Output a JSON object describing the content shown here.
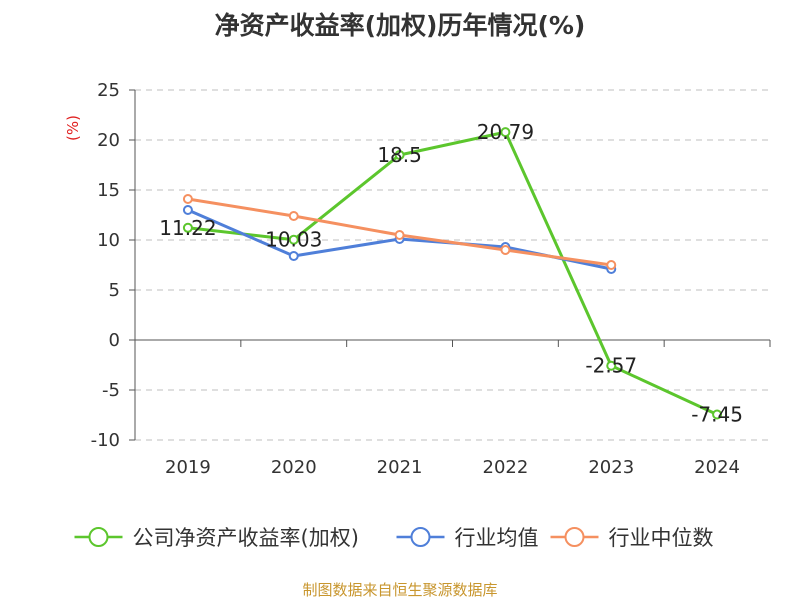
{
  "chart_data": {
    "type": "line",
    "title": "净资产收益率(加权)历年情况(%)",
    "ylabel": "(%)",
    "categories": [
      "2019",
      "2020",
      "2021",
      "2022",
      "2023",
      "2024"
    ],
    "ylim": [
      -10,
      25
    ],
    "yticks": [
      25,
      20,
      15,
      10,
      5,
      0,
      -5,
      -10
    ],
    "grid": true,
    "legend_position": "bottom",
    "series": [
      {
        "name": "公司净资产收益率(加权)",
        "color": "#5cc62d",
        "values": [
          11.22,
          10.03,
          18.5,
          20.79,
          -2.57,
          -7.45
        ],
        "labels": [
          "11.22",
          "10.03",
          "18.5",
          "20.79",
          "-2.57",
          "-7.45"
        ]
      },
      {
        "name": "行业均值",
        "color": "#4f7fd9",
        "values": [
          13.0,
          8.4,
          10.1,
          9.3,
          7.1,
          null
        ]
      },
      {
        "name": "行业中位数",
        "color": "#f59060",
        "values": [
          14.1,
          12.4,
          10.5,
          9.0,
          7.5,
          null
        ]
      }
    ]
  },
  "ylabel_color": "#e02020",
  "source": {
    "text": "制图数据来自恒生聚源数据库",
    "color": "#c8962e"
  }
}
